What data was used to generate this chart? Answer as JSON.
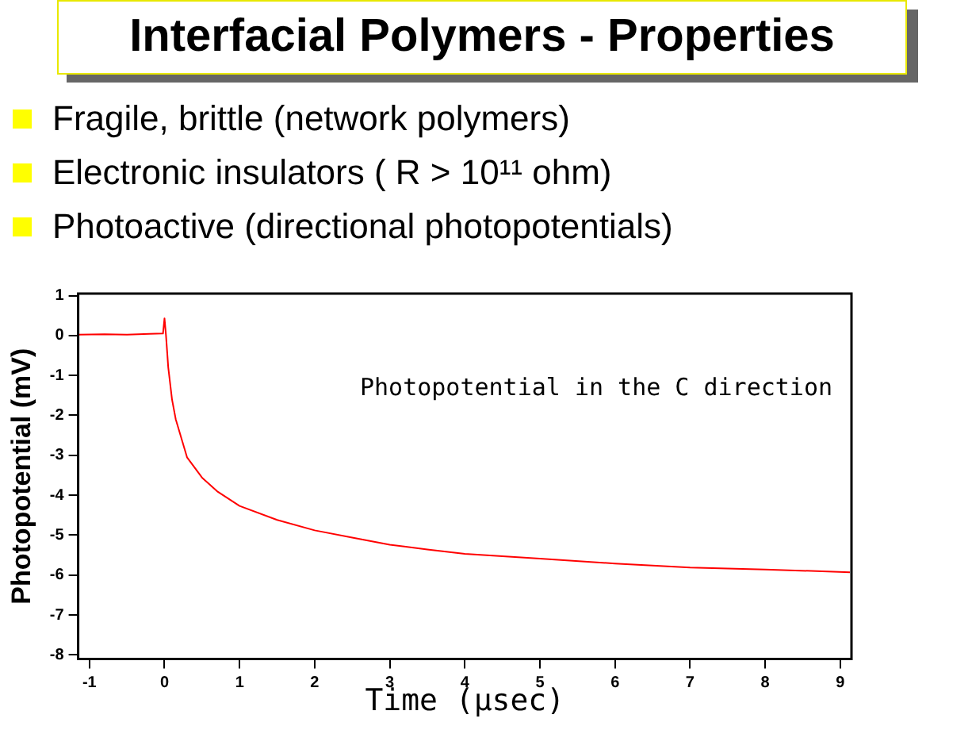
{
  "chart_data": {
    "type": "line",
    "title": "Interfacial Polymers - Properties",
    "annotations": [
      "Fragile, brittle (network polymers)",
      "Electronic insulators  ( R > 10¹¹ ohm)",
      "Photoactive (directional photopotentials)",
      "Photopotential in the C direction"
    ],
    "xlabel": "Time (µsec)",
    "ylabel": "Photopotential (mV)",
    "series": [
      {
        "color": "#ff0000",
        "x": [
          -1.15,
          -0.8,
          -0.5,
          -0.2,
          -0.02,
          0,
          0.02,
          0.05,
          0.1,
          0.15,
          0.3,
          0.5,
          0.7,
          1,
          1.5,
          2,
          2.5,
          3,
          3.5,
          4,
          5,
          6,
          7,
          8,
          9.13
        ],
        "values": [
          0.02,
          0.03,
          0.02,
          0.04,
          0.05,
          0.43,
          0,
          -0.8,
          -1.6,
          -2.1,
          -3.05,
          -3.56,
          -3.9,
          -4.27,
          -4.62,
          -4.88,
          -5.06,
          -5.24,
          -5.36,
          -5.47,
          -5.59,
          -5.71,
          -5.81,
          -5.86,
          -5.93
        ]
      }
    ],
    "xlim": [
      -1.15,
      9.15
    ],
    "ylim": [
      -8.1,
      1.05
    ],
    "xticks": [
      -1,
      0,
      1,
      2,
      3,
      4,
      5,
      6,
      7,
      8,
      9
    ],
    "yticks": [
      -8,
      -7,
      -6,
      -5,
      -4,
      -3,
      -2,
      -1,
      0,
      1
    ],
    "grid": false,
    "legend": false,
    "marker": "none",
    "line_style": "solid"
  }
}
